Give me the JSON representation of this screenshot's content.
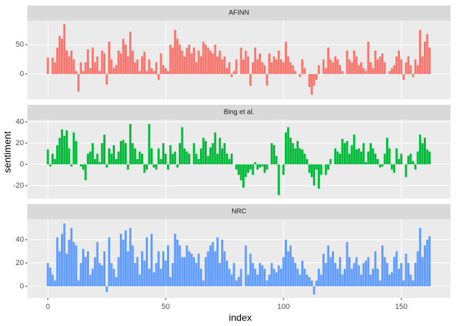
{
  "xlabel": "index",
  "ylabel": "sentiment",
  "xlim": [
    -8.7,
    170.9
  ],
  "xticks": [
    0,
    50,
    100,
    150
  ],
  "x": [
    0,
    1,
    2,
    3,
    4,
    5,
    6,
    7,
    8,
    9,
    10,
    11,
    12,
    13,
    14,
    15,
    16,
    17,
    18,
    19,
    20,
    21,
    22,
    23,
    24,
    25,
    26,
    27,
    28,
    29,
    30,
    31,
    32,
    33,
    34,
    35,
    36,
    37,
    38,
    39,
    40,
    41,
    42,
    43,
    44,
    45,
    46,
    47,
    48,
    49,
    50,
    51,
    52,
    53,
    54,
    55,
    56,
    57,
    58,
    59,
    60,
    61,
    62,
    63,
    64,
    65,
    66,
    67,
    68,
    69,
    70,
    71,
    72,
    73,
    74,
    75,
    76,
    77,
    78,
    79,
    80,
    81,
    82,
    83,
    84,
    85,
    86,
    87,
    88,
    89,
    90,
    91,
    92,
    93,
    94,
    95,
    96,
    97,
    98,
    99,
    100,
    101,
    102,
    103,
    104,
    105,
    106,
    107,
    108,
    109,
    110,
    111,
    112,
    113,
    114,
    115,
    116,
    117,
    118,
    119,
    120,
    121,
    122,
    123,
    124,
    125,
    126,
    127,
    128,
    129,
    130,
    131,
    132,
    133,
    134,
    135,
    136,
    137,
    138,
    139,
    140,
    141,
    142,
    143,
    144,
    145,
    146,
    147,
    148,
    149,
    150,
    151,
    152,
    153,
    154,
    155,
    156,
    157,
    158,
    159,
    160,
    161,
    162
  ],
  "chart_data": [
    {
      "type": "bar",
      "title": "AFINN",
      "color": "#F8766D",
      "ylim": [
        -43,
        91
      ],
      "yticks": [
        0,
        50
      ],
      "values": [
        28,
        0,
        28,
        20,
        45,
        65,
        60,
        85,
        40,
        30,
        40,
        25,
        5,
        -30,
        20,
        5,
        20,
        42,
        10,
        45,
        20,
        30,
        5,
        40,
        35,
        -18,
        55,
        25,
        10,
        15,
        40,
        35,
        60,
        50,
        30,
        72,
        40,
        20,
        25,
        5,
        30,
        38,
        5,
        25,
        10,
        5,
        20,
        -10,
        35,
        15,
        10,
        5,
        50,
        45,
        75,
        60,
        50,
        40,
        30,
        45,
        50,
        35,
        45,
        20,
        40,
        30,
        55,
        50,
        45,
        40,
        35,
        50,
        30,
        40,
        25,
        30,
        10,
        20,
        -5,
        5,
        25,
        0,
        45,
        25,
        40,
        30,
        -20,
        20,
        45,
        25,
        35,
        20,
        15,
        -20,
        35,
        20,
        30,
        25,
        40,
        25,
        20,
        55,
        30,
        20,
        15,
        5,
        0,
        -5,
        25,
        10,
        0,
        -22,
        -35,
        -20,
        -10,
        15,
        0,
        25,
        10,
        45,
        25,
        20,
        30,
        25,
        15,
        5,
        0,
        40,
        25,
        20,
        40,
        30,
        15,
        20,
        10,
        5,
        55,
        20,
        10,
        40,
        25,
        30,
        35,
        20,
        0,
        5,
        10,
        15,
        30,
        40,
        25,
        -10,
        20,
        30,
        15,
        -5,
        25,
        15,
        75,
        30,
        55,
        68,
        45
      ]
    },
    {
      "type": "bar",
      "title": "Bing et al.",
      "color": "#00BA38",
      "ylim": [
        -32.3,
        41.9
      ],
      "yticks": [
        -20,
        0,
        20,
        40
      ],
      "values": [
        14,
        -2,
        10,
        5,
        18,
        25,
        33,
        27,
        32,
        15,
        -2,
        30,
        22,
        0,
        -2,
        -5,
        -15,
        10,
        12,
        20,
        5,
        10,
        2,
        20,
        28,
        -3,
        15,
        10,
        18,
        5,
        12,
        22,
        23,
        20,
        -5,
        38,
        20,
        15,
        5,
        12,
        10,
        -8,
        -5,
        38,
        15,
        -3,
        -5,
        15,
        5,
        20,
        10,
        -5,
        18,
        10,
        12,
        -3,
        20,
        35,
        15,
        12,
        10,
        0,
        20,
        10,
        5,
        15,
        25,
        22,
        8,
        16,
        20,
        30,
        10,
        25,
        15,
        20,
        10,
        5,
        10,
        0,
        -5,
        -10,
        -15,
        -22,
        -12,
        -8,
        -5,
        -10,
        2,
        -5,
        -3,
        -2,
        -8,
        -5,
        0,
        20,
        18,
        8,
        -29,
        0,
        -10,
        30,
        35,
        25,
        20,
        15,
        22,
        15,
        14,
        10,
        5,
        -8,
        -12,
        -20,
        -5,
        -23,
        -10,
        0,
        -10,
        -5,
        5,
        0,
        15,
        12,
        10,
        24,
        20,
        22,
        10,
        18,
        28,
        14,
        15,
        12,
        20,
        2,
        12,
        20,
        15,
        10,
        5,
        -3,
        -2,
        10,
        25,
        15,
        -5,
        -8,
        15,
        5,
        10,
        0,
        -12,
        8,
        10,
        3,
        -5,
        12,
        28,
        20,
        25,
        14,
        12
      ]
    },
    {
      "type": "bar",
      "title": "NRC",
      "color": "#619CFF",
      "ylim": [
        -10,
        57.6
      ],
      "yticks": [
        0,
        20,
        40
      ],
      "values": [
        20,
        16,
        10,
        5,
        42,
        30,
        45,
        54,
        28,
        40,
        50,
        38,
        35,
        5,
        20,
        32,
        25,
        30,
        10,
        15,
        25,
        38,
        20,
        18,
        30,
        -5,
        42,
        20,
        15,
        8,
        25,
        45,
        40,
        48,
        30,
        50,
        35,
        20,
        25,
        10,
        30,
        22,
        42,
        15,
        45,
        12,
        20,
        30,
        15,
        30,
        22,
        35,
        8,
        20,
        45,
        40,
        35,
        25,
        25,
        35,
        30,
        28,
        25,
        20,
        28,
        15,
        5,
        25,
        30,
        35,
        38,
        30,
        42,
        20,
        40,
        30,
        22,
        15,
        10,
        20,
        5,
        8,
        15,
        0,
        35,
        10,
        28,
        20,
        15,
        10,
        20,
        18,
        15,
        5,
        10,
        20,
        15,
        12,
        18,
        15,
        25,
        40,
        30,
        35,
        25,
        20,
        15,
        10,
        22,
        15,
        10,
        8,
        5,
        -7,
        5,
        15,
        10,
        28,
        20,
        35,
        25,
        30,
        20,
        15,
        25,
        10,
        15,
        38,
        25,
        15,
        20,
        25,
        18,
        10,
        20,
        22,
        25,
        10,
        15,
        30,
        15,
        5,
        35,
        25,
        20,
        10,
        12,
        25,
        30,
        15,
        20,
        5,
        28,
        20,
        10,
        5,
        20,
        30,
        50,
        25,
        35,
        40,
        43
      ]
    }
  ]
}
